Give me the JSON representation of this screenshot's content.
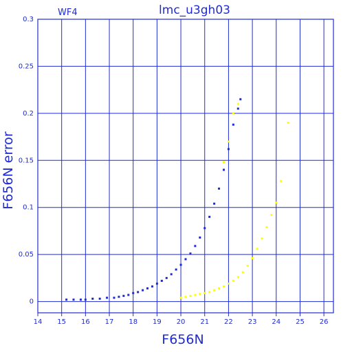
{
  "chart_data": {
    "type": "scatter",
    "title": "lmc_u3gh03",
    "panel_label": "WF4",
    "xlabel": "F656N",
    "ylabel": "F656N error",
    "xlim": [
      14,
      26.4
    ],
    "ylim": [
      -0.012,
      0.3
    ],
    "xticks": [
      14,
      15,
      16,
      17,
      18,
      19,
      20,
      21,
      22,
      23,
      24,
      25,
      26
    ],
    "yticks": [
      0,
      0.05,
      0.1,
      0.15,
      0.2,
      0.25,
      0.3
    ],
    "ytick_labels": [
      "0",
      "0.05",
      "0.1",
      "0.15",
      "0.2",
      "0.25",
      "0.3"
    ],
    "grid": true,
    "colors": {
      "axis": "#1f2bd0",
      "series_blue": "#1f2bd0",
      "series_yellow": "#ffff00"
    },
    "series": [
      {
        "color": "#1f2bd0",
        "points": [
          [
            15.2,
            0.002
          ],
          [
            15.5,
            0.002
          ],
          [
            15.8,
            0.002
          ],
          [
            16.0,
            0.002
          ],
          [
            16.3,
            0.003
          ],
          [
            16.6,
            0.003
          ],
          [
            16.9,
            0.004
          ],
          [
            17.2,
            0.004
          ],
          [
            17.4,
            0.005
          ],
          [
            17.6,
            0.006
          ],
          [
            17.8,
            0.007
          ],
          [
            18.0,
            0.009
          ],
          [
            18.2,
            0.01
          ],
          [
            18.4,
            0.012
          ],
          [
            18.6,
            0.014
          ],
          [
            18.8,
            0.016
          ],
          [
            19.0,
            0.019
          ],
          [
            19.2,
            0.022
          ],
          [
            19.4,
            0.025
          ],
          [
            19.6,
            0.029
          ],
          [
            19.8,
            0.034
          ],
          [
            20.0,
            0.039
          ],
          [
            20.2,
            0.045
          ],
          [
            20.4,
            0.051
          ],
          [
            20.6,
            0.059
          ],
          [
            20.8,
            0.068
          ],
          [
            21.0,
            0.078
          ],
          [
            21.2,
            0.09
          ],
          [
            21.4,
            0.104
          ],
          [
            21.6,
            0.12
          ],
          [
            21.8,
            0.14
          ],
          [
            22.0,
            0.162
          ],
          [
            22.2,
            0.188
          ],
          [
            22.4,
            0.205
          ],
          [
            22.5,
            0.215
          ]
        ]
      },
      {
        "color": "#ffff00",
        "points": [
          [
            20.0,
            0.004
          ],
          [
            20.2,
            0.005
          ],
          [
            20.4,
            0.006
          ],
          [
            20.6,
            0.007
          ],
          [
            20.8,
            0.008
          ],
          [
            21.0,
            0.009
          ],
          [
            21.2,
            0.01
          ],
          [
            21.4,
            0.012
          ],
          [
            21.6,
            0.014
          ],
          [
            21.8,
            0.016
          ],
          [
            22.0,
            0.019
          ],
          [
            22.2,
            0.022
          ],
          [
            22.4,
            0.026
          ],
          [
            22.6,
            0.031
          ],
          [
            22.8,
            0.038
          ],
          [
            23.0,
            0.046
          ],
          [
            23.2,
            0.056
          ],
          [
            23.4,
            0.067
          ],
          [
            23.6,
            0.079
          ],
          [
            23.8,
            0.092
          ],
          [
            24.0,
            0.105
          ],
          [
            24.2,
            0.128
          ],
          [
            24.5,
            0.19
          ],
          [
            21.8,
            0.148
          ],
          [
            22.0,
            0.17
          ],
          [
            22.2,
            0.2
          ],
          [
            22.4,
            0.21
          ]
        ]
      }
    ]
  }
}
